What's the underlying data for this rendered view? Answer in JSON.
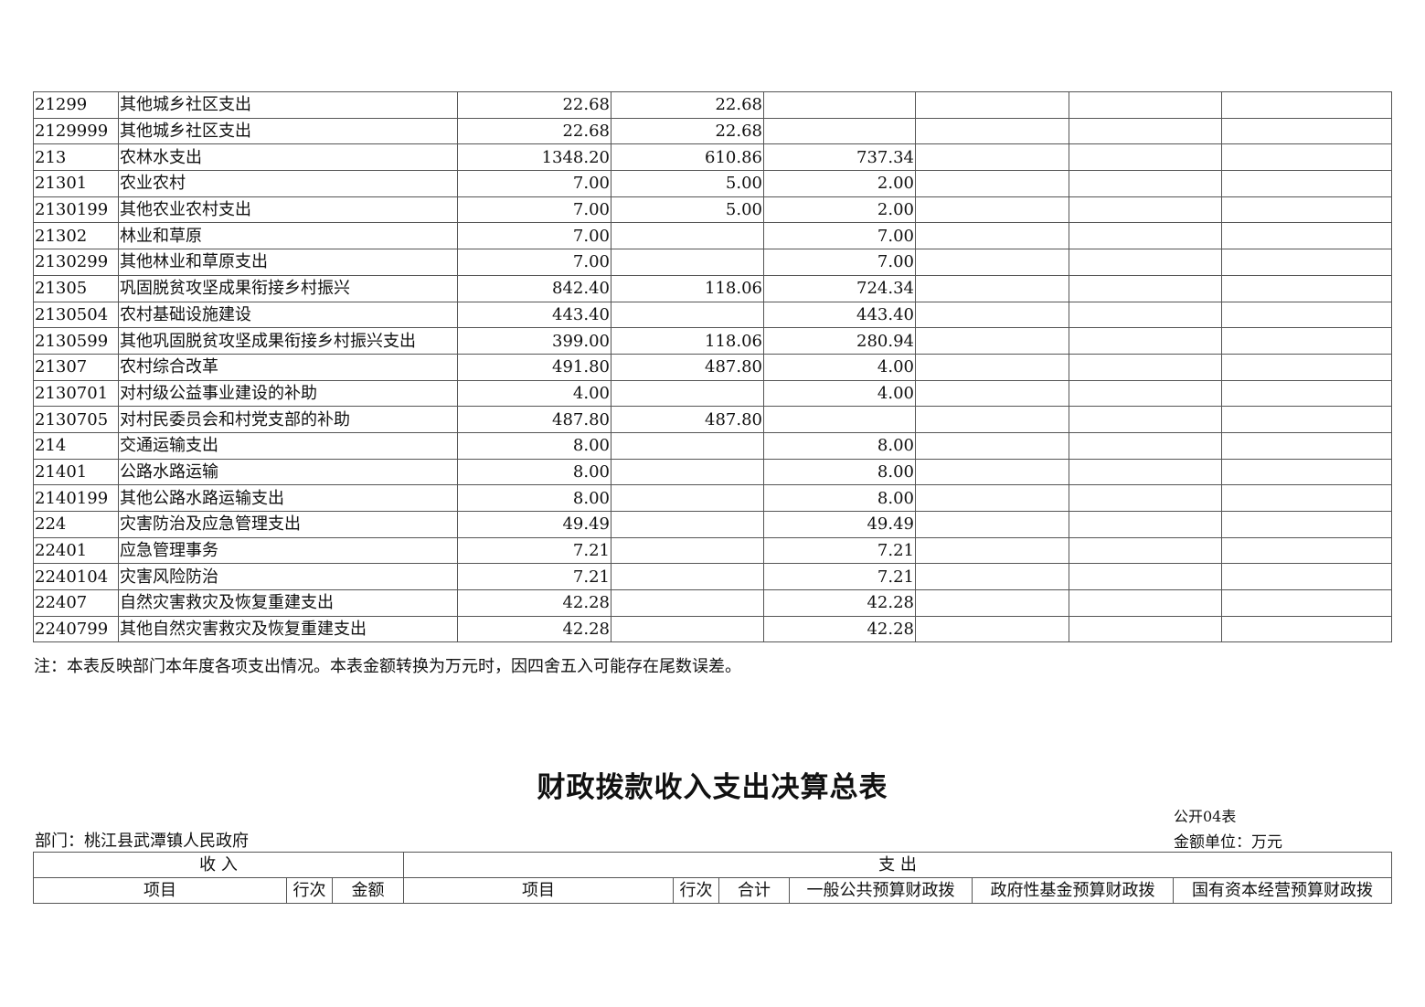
{
  "expense_table": {
    "rows": [
      {
        "code": "21299",
        "name": "其他城乡社区支出",
        "total": "22.68",
        "basic": "22.68",
        "project": ""
      },
      {
        "code": "2129999",
        "name": "其他城乡社区支出",
        "total": "22.68",
        "basic": "22.68",
        "project": ""
      },
      {
        "code": "213",
        "name": "农林水支出",
        "total": "1348.20",
        "basic": "610.86",
        "project": "737.34"
      },
      {
        "code": "21301",
        "name": "农业农村",
        "total": "7.00",
        "basic": "5.00",
        "project": "2.00"
      },
      {
        "code": "2130199",
        "name": "其他农业农村支出",
        "total": "7.00",
        "basic": "5.00",
        "project": "2.00"
      },
      {
        "code": "21302",
        "name": "林业和草原",
        "total": "7.00",
        "basic": "",
        "project": "7.00"
      },
      {
        "code": "2130299",
        "name": "其他林业和草原支出",
        "total": "7.00",
        "basic": "",
        "project": "7.00"
      },
      {
        "code": "21305",
        "name": "巩固脱贫攻坚成果衔接乡村振兴",
        "total": "842.40",
        "basic": "118.06",
        "project": "724.34"
      },
      {
        "code": "2130504",
        "name": "农村基础设施建设",
        "total": "443.40",
        "basic": "",
        "project": "443.40"
      },
      {
        "code": "2130599",
        "name": "其他巩固脱贫攻坚成果衔接乡村振兴支出",
        "total": "399.00",
        "basic": "118.06",
        "project": "280.94"
      },
      {
        "code": "21307",
        "name": "农村综合改革",
        "total": "491.80",
        "basic": "487.80",
        "project": "4.00"
      },
      {
        "code": "2130701",
        "name": "对村级公益事业建设的补助",
        "total": "4.00",
        "basic": "",
        "project": "4.00"
      },
      {
        "code": "2130705",
        "name": "对村民委员会和村党支部的补助",
        "total": "487.80",
        "basic": "487.80",
        "project": ""
      },
      {
        "code": "214",
        "name": "交通运输支出",
        "total": "8.00",
        "basic": "",
        "project": "8.00"
      },
      {
        "code": "21401",
        "name": "公路水路运输",
        "total": "8.00",
        "basic": "",
        "project": "8.00"
      },
      {
        "code": "2140199",
        "name": "其他公路水路运输支出",
        "total": "8.00",
        "basic": "",
        "project": "8.00"
      },
      {
        "code": "224",
        "name": "灾害防治及应急管理支出",
        "total": "49.49",
        "basic": "",
        "project": "49.49"
      },
      {
        "code": "22401",
        "name": "应急管理事务",
        "total": "7.21",
        "basic": "",
        "project": "7.21"
      },
      {
        "code": "2240104",
        "name": "灾害风险防治",
        "total": "7.21",
        "basic": "",
        "project": "7.21"
      },
      {
        "code": "22407",
        "name": "自然灾害救灾及恢复重建支出",
        "total": "42.28",
        "basic": "",
        "project": "42.28"
      },
      {
        "code": "2240799",
        "name": "其他自然灾害救灾及恢复重建支出",
        "total": "42.28",
        "basic": "",
        "project": "42.28"
      }
    ],
    "note": "注：本表反映部门本年度各项支出情况。本表金额转换为万元时，因四舍五入可能存在尾数误差。"
  },
  "summary": {
    "title": "财政拨款收入支出决算总表",
    "form_code": "公开04表",
    "department": "部门：桃江县武潭镇人民政府",
    "unit": "金额单位：万元",
    "income_header": "收 入",
    "expense_header": "支 出",
    "columns": [
      "项目",
      "行次",
      "金额",
      "项目",
      "行次",
      "合计",
      "一般公共预算财政拨",
      "政府性基金预算财政拨",
      "国有资本经营预算财政拨"
    ]
  }
}
